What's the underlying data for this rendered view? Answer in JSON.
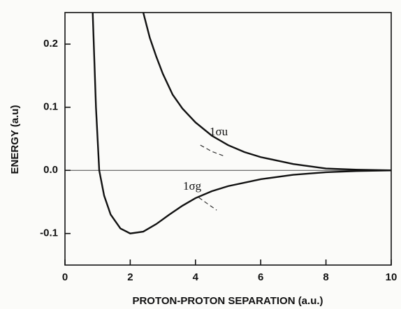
{
  "chart_data": {
    "type": "line",
    "xlabel": "PROTON-PROTON SEPARATION (a.u.)",
    "ylabel": "ENERGY (a.u)",
    "xlim": [
      0,
      10
    ],
    "xticks": [
      0,
      2,
      4,
      6,
      8,
      10
    ],
    "ylim": [
      -0.15,
      0.25
    ],
    "yticks": [
      0.2,
      0.1,
      {
        "value": 0,
        "label": "0.0"
      },
      -0.1
    ],
    "zero_line": true,
    "series": [
      {
        "name": "1σu",
        "color": "#111111",
        "dashed": false,
        "x": [
          2.4,
          2.6,
          2.8,
          3,
          3.3,
          3.6,
          4,
          4.5,
          5,
          5.5,
          6,
          7,
          8,
          9,
          10
        ],
        "values": [
          0.25,
          0.21,
          0.18,
          0.153,
          0.12,
          0.098,
          0.076,
          0.055,
          0.04,
          0.029,
          0.021,
          0.01,
          0.003,
          0.001,
          0
        ]
      },
      {
        "name": "1σg",
        "color": "#111111",
        "dashed": false,
        "x": [
          0.85,
          0.95,
          1.05,
          1.2,
          1.4,
          1.7,
          2.0,
          2.4,
          2.8,
          3.2,
          3.6,
          4,
          4.5,
          5,
          6,
          7,
          8,
          9,
          10
        ],
        "values": [
          0.25,
          0.1,
          0.0,
          -0.04,
          -0.07,
          -0.092,
          -0.1,
          -0.097,
          -0.085,
          -0.07,
          -0.056,
          -0.044,
          -0.033,
          -0.025,
          -0.014,
          -0.007,
          -0.003,
          -0.001,
          0
        ]
      },
      {
        "color": "#333333",
        "dashed": true,
        "x": [
          4.15,
          4.5,
          4.86
        ],
        "values": [
          0.04,
          0.03,
          0.023
        ]
      },
      {
        "color": "#333333",
        "dashed": true,
        "x": [
          4.1,
          4.4,
          4.65
        ],
        "values": [
          -0.043,
          -0.054,
          -0.063
        ]
      }
    ]
  }
}
